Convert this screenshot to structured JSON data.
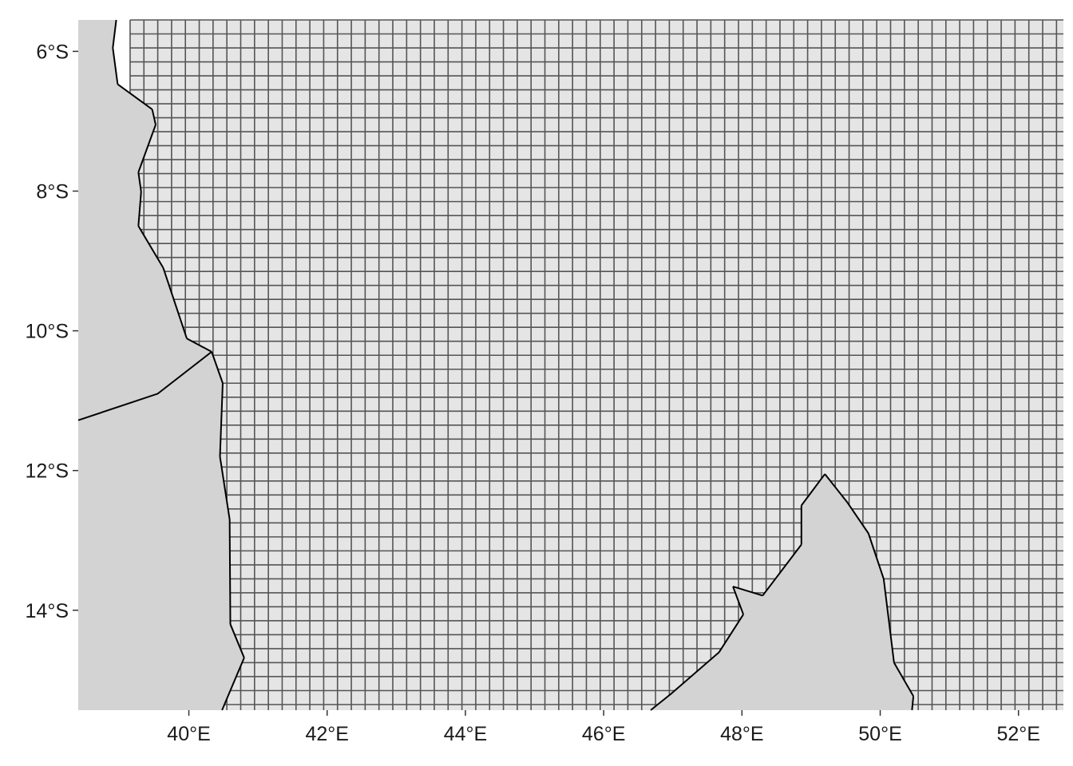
{
  "map": {
    "projection": "longitude-latitude",
    "lon_range": [
      38.4,
      52.65
    ],
    "lat_range": [
      -15.43,
      -5.55
    ],
    "x_ticks": [
      {
        "value": 40,
        "label": "40°E"
      },
      {
        "value": 42,
        "label": "42°E"
      },
      {
        "value": 44,
        "label": "44°E"
      },
      {
        "value": 46,
        "label": "46°E"
      },
      {
        "value": 48,
        "label": "48°E"
      },
      {
        "value": 50,
        "label": "50°E"
      },
      {
        "value": 52,
        "label": "52°E"
      }
    ],
    "y_ticks": [
      {
        "value": -6,
        "label": "6°S"
      },
      {
        "value": -8,
        "label": "8°S"
      },
      {
        "value": -10,
        "label": "10°S"
      },
      {
        "value": -12,
        "label": "12°S"
      },
      {
        "value": -14,
        "label": "14°S"
      }
    ],
    "grid": {
      "cell_size_deg": 0.2,
      "lon_start": 39.15,
      "lon_end": 52.65,
      "lat_start": -15.43,
      "lat_end": -5.55,
      "fill_color": "#e5e5e5",
      "line_color": "#555555"
    },
    "land_color": "#d3d3d3",
    "border_color": "#000000",
    "features": [
      {
        "name": "east-africa-coast",
        "coords": [
          [
            38.4,
            -5.55
          ],
          [
            38.95,
            -5.55
          ],
          [
            38.9,
            -5.95
          ],
          [
            38.97,
            -6.47
          ],
          [
            39.47,
            -6.83
          ],
          [
            39.52,
            -7.05
          ],
          [
            39.27,
            -7.73
          ],
          [
            39.31,
            -8.01
          ],
          [
            39.27,
            -8.5
          ],
          [
            39.63,
            -9.1
          ],
          [
            39.97,
            -10.11
          ],
          [
            40.33,
            -10.3
          ],
          [
            40.49,
            -10.75
          ],
          [
            40.45,
            -11.8
          ],
          [
            40.59,
            -12.7
          ],
          [
            40.6,
            -14.2
          ],
          [
            40.8,
            -14.68
          ],
          [
            40.48,
            -15.43
          ],
          [
            38.4,
            -15.43
          ]
        ]
      },
      {
        "name": "mozambique-tanzania-border",
        "coords": [
          [
            40.33,
            -10.3
          ],
          [
            39.55,
            -10.9
          ],
          [
            38.4,
            -11.28
          ]
        ]
      },
      {
        "name": "madagascar",
        "coords": [
          [
            46.68,
            -15.43
          ],
          [
            46.97,
            -15.2
          ],
          [
            47.67,
            -14.6
          ],
          [
            48.02,
            -14.06
          ],
          [
            47.87,
            -13.66
          ],
          [
            48.3,
            -13.79
          ],
          [
            48.86,
            -13.06
          ],
          [
            48.86,
            -12.5
          ],
          [
            49.2,
            -12.05
          ],
          [
            49.52,
            -12.45
          ],
          [
            49.83,
            -12.9
          ],
          [
            50.05,
            -13.55
          ],
          [
            50.2,
            -14.75
          ],
          [
            50.48,
            -15.23
          ],
          [
            50.46,
            -15.43
          ]
        ]
      }
    ]
  }
}
